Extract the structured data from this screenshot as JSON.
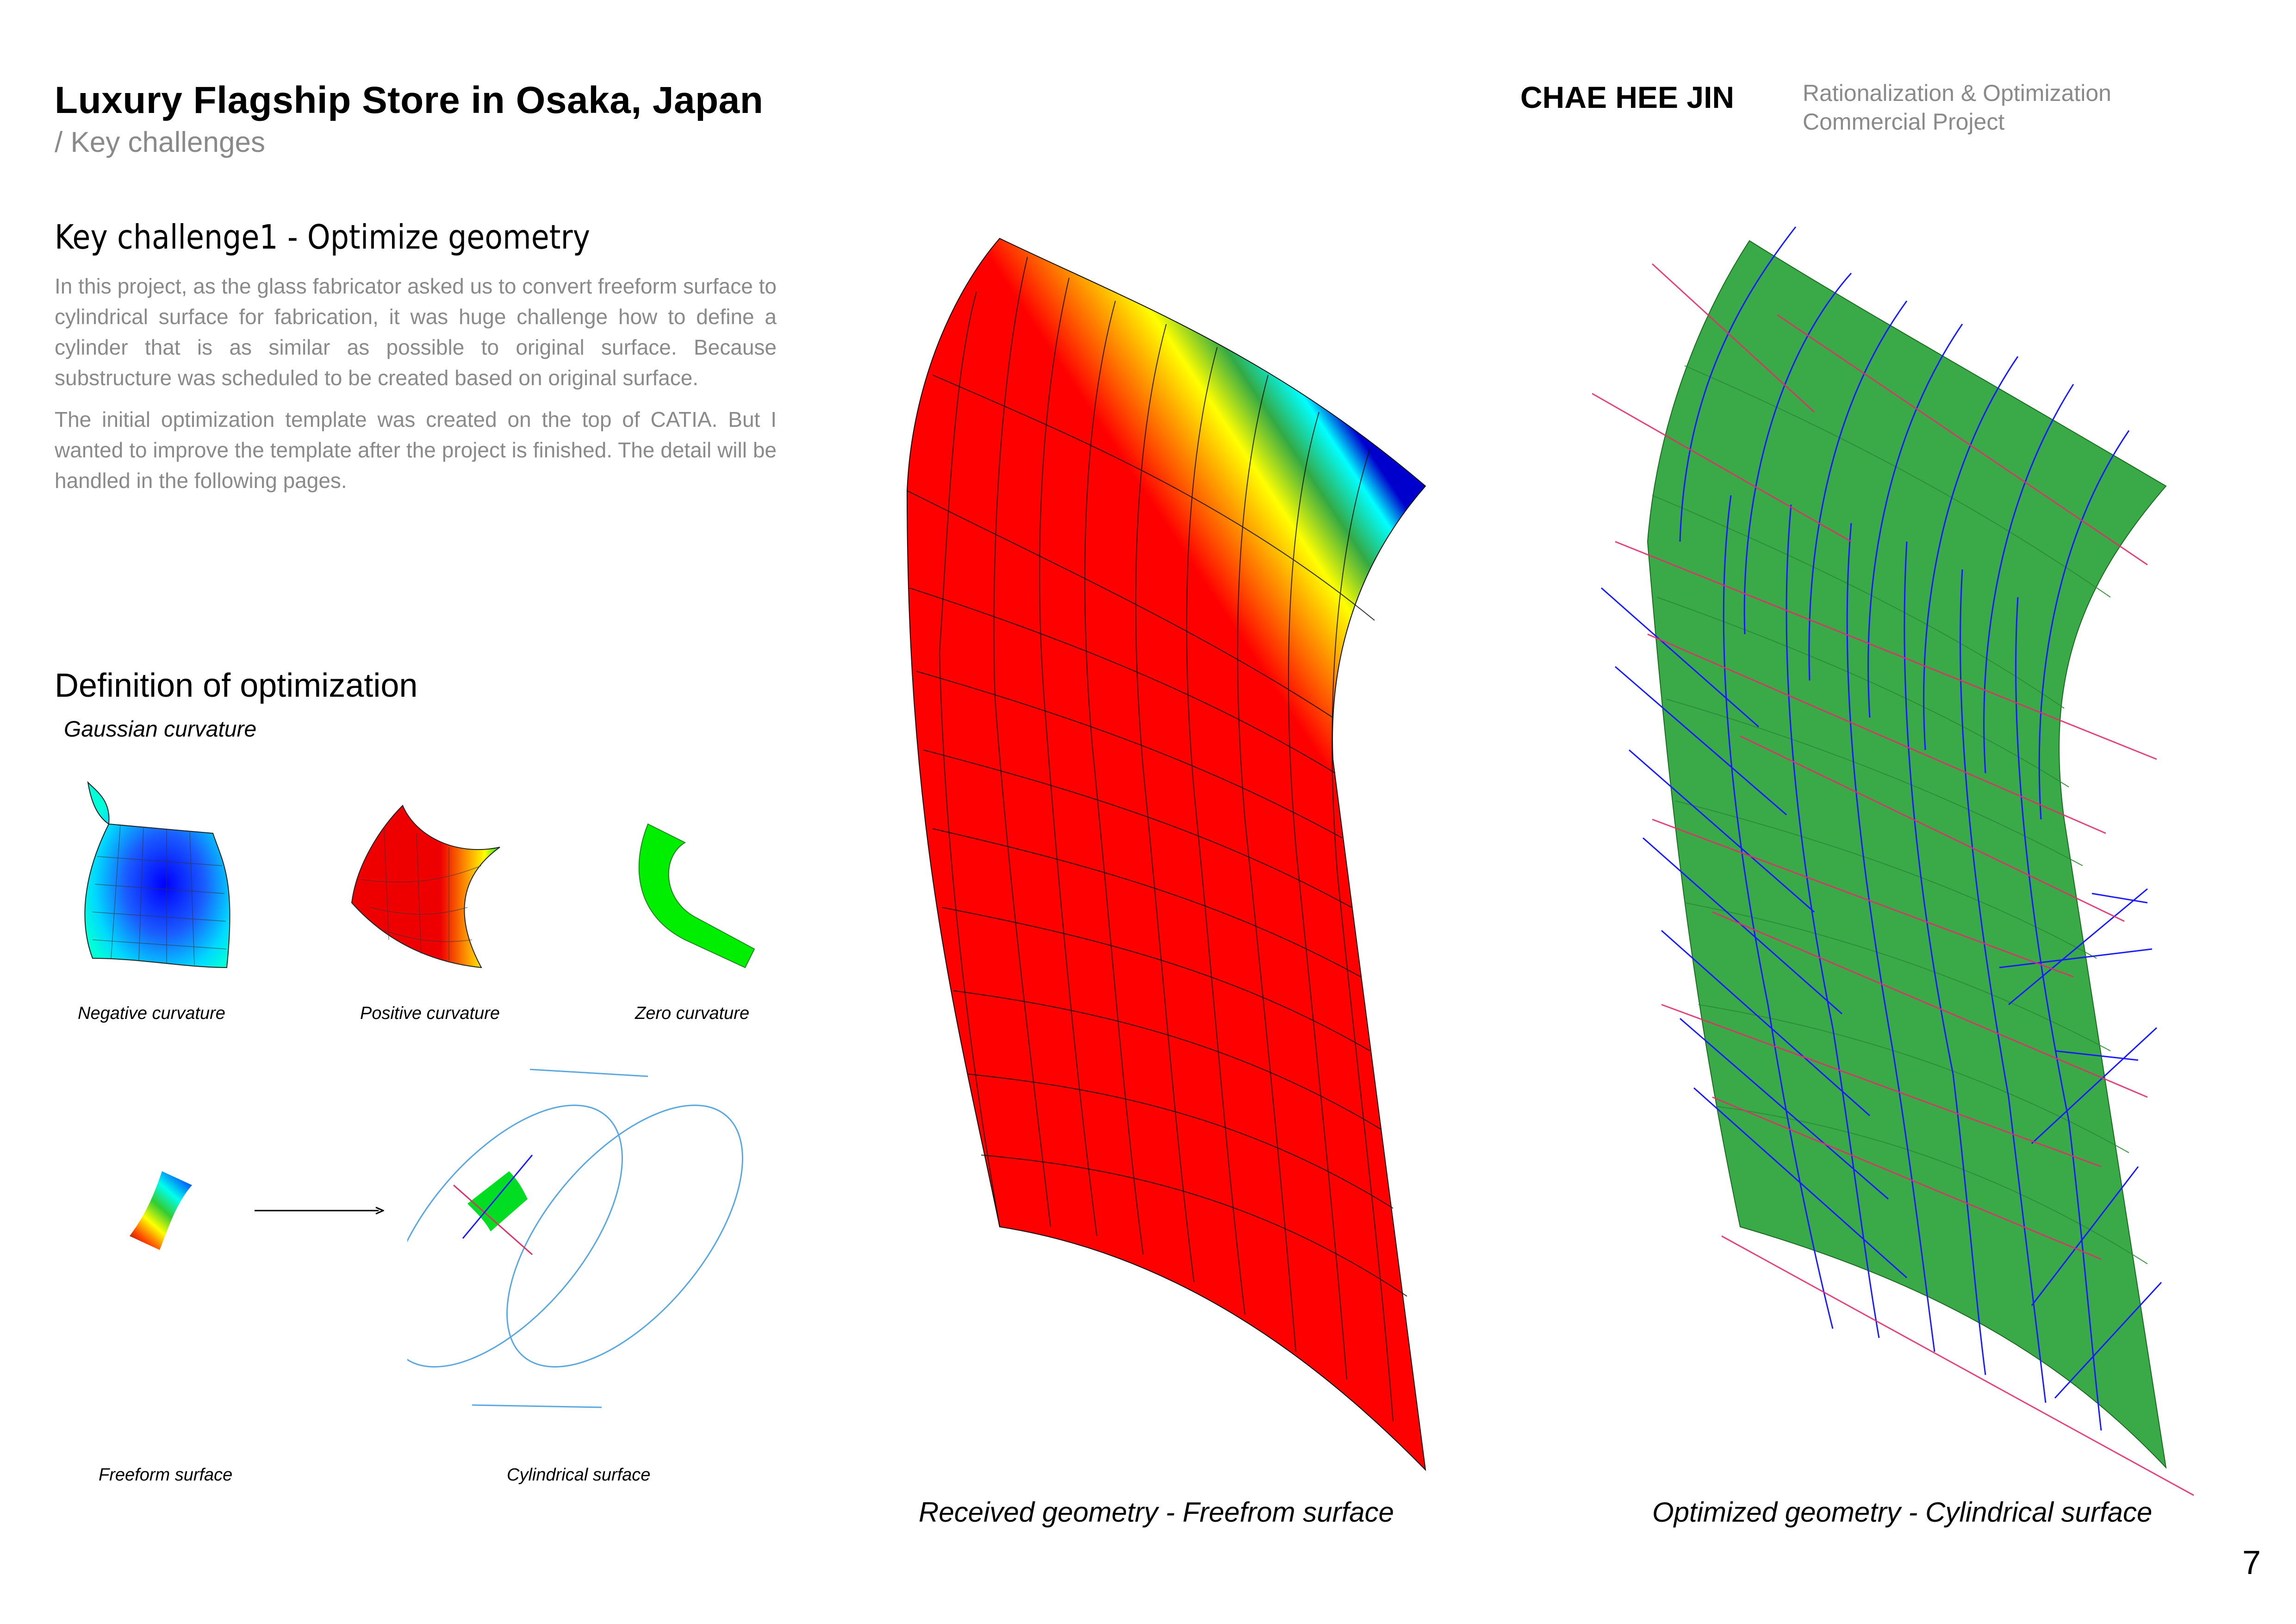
{
  "header": {
    "title": "Luxury Flagship Store in Osaka, Japan",
    "subtitle": "/ Key challenges",
    "author": "CHAE HEE JIN",
    "meta_line1": "Rationalization & Optimization",
    "meta_line2": "Commercial Project"
  },
  "section1": {
    "heading": "Key challenge1 - Optimize geometry",
    "paragraph1": "In this project, as the glass fabricator asked us to convert freeform surface to cylindrical surface for fabrication, it was huge challenge how to define a cylinder that is as similar as possible to original surface. Because substructure was scheduled to be created based on original surface.",
    "paragraph2": " The initial optimization template was created on the top of CATIA. But I wanted to improve the template after the project is finished. The detail will be handled in the following pages."
  },
  "section2": {
    "heading": "Definition of optimization",
    "subheading": "Gaussian curvature",
    "captions": {
      "negative": "Negative curvature",
      "positive": "Positive curvature",
      "zero": "Zero curvature",
      "freeform": "Freeform surface",
      "cylindrical": "Cylindrical surface"
    }
  },
  "figures": {
    "received_caption": "Received geometry - Freefrom surface",
    "optimized_caption": "Optimized geometry - Cylindrical surface"
  },
  "page_number": "7",
  "colors": {
    "text_gray": "#8a8a8a",
    "surface_red": "#ff0000",
    "surface_green": "#3aaa48",
    "line_blue": "#1a1aff",
    "line_pink": "#e0306a",
    "cylinder_outline": "#5aa8e0"
  }
}
